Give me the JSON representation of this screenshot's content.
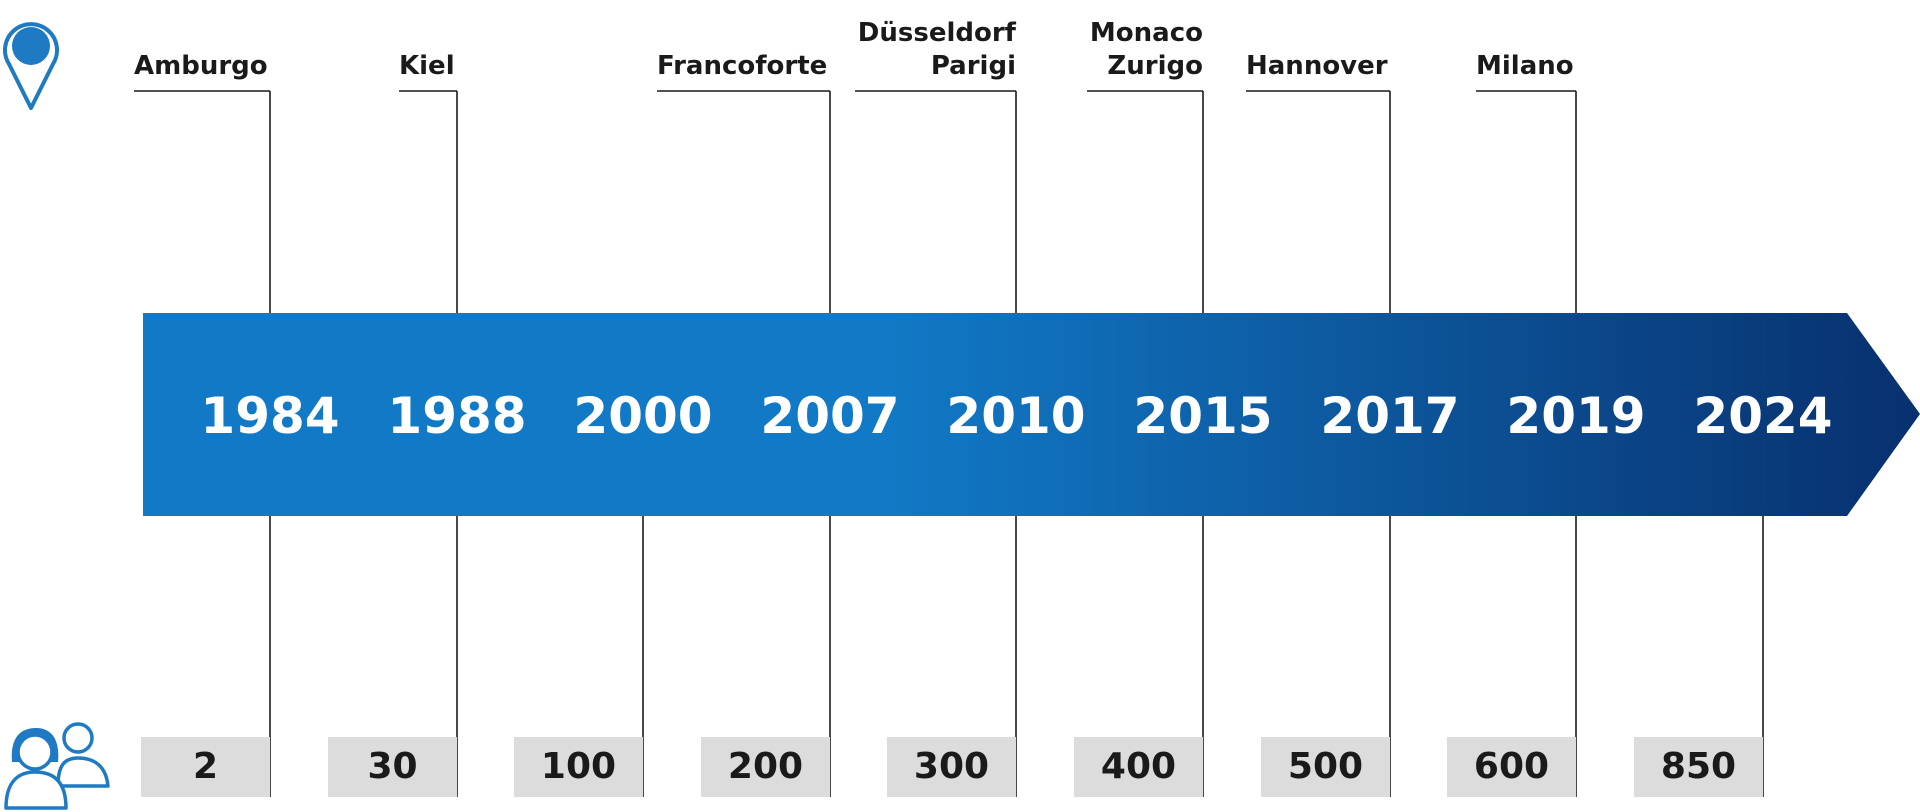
{
  "colors": {
    "arrow_start": "#1179c6",
    "arrow_end": "#08306e",
    "line": "#1a1a1a",
    "count_box": "#dcdcdc",
    "icon": "#1e7ac3",
    "year_text": "#ffffff"
  },
  "icons": {
    "location": "location-pin-icon",
    "people": "people-icon"
  },
  "timeline": [
    {
      "year": "1984",
      "city": "Amburgo",
      "count": "2"
    },
    {
      "year": "1988",
      "city": "Kiel",
      "count": "30"
    },
    {
      "year": "2000",
      "city": "",
      "count": "100"
    },
    {
      "year": "2007",
      "city": "Francoforte",
      "count": "200"
    },
    {
      "year": "2010",
      "city": "Düsseldorf\nParigi",
      "count": "300"
    },
    {
      "year": "2015",
      "city": "Monaco\nZurigo",
      "count": "400"
    },
    {
      "year": "2017",
      "city": "Hannover",
      "count": "500"
    },
    {
      "year": "2019",
      "city": "Milano",
      "count": "600"
    },
    {
      "year": "2024",
      "city": "",
      "count": "850"
    }
  ]
}
